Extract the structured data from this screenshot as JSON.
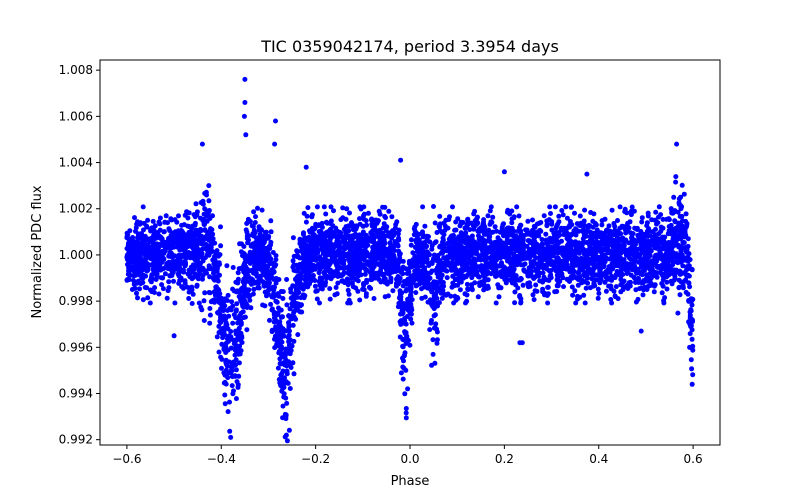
{
  "chart_data": {
    "type": "scatter",
    "title": "TIC 0359042174, period 3.3954 days",
    "xlabel": "Phase",
    "ylabel": "Normalized PDC flux",
    "xlim": [
      -0.657,
      0.657
    ],
    "ylim": [
      0.99177,
      1.00844
    ],
    "xticks": [
      -0.6,
      -0.4,
      -0.2,
      0.0,
      0.2,
      0.4,
      0.6
    ],
    "xtick_labels": [
      "−0.6",
      "−0.4",
      "−0.2",
      "0.0",
      "0.2",
      "0.4",
      "0.6"
    ],
    "yticks": [
      0.992,
      0.994,
      0.996,
      0.998,
      1.0,
      1.002,
      1.004,
      1.006,
      1.008
    ],
    "ytick_labels": [
      "0.992",
      "0.994",
      "0.996",
      "0.998",
      "1.000",
      "1.002",
      "1.004",
      "1.006",
      "1.008"
    ],
    "grid": false,
    "marker_color": "#0000ff",
    "series": [
      {
        "name": "PDC flux",
        "phase_range": [
          -0.6,
          0.6
        ],
        "baseline": 1.0,
        "scatter_sigma": 0.0008,
        "dips": [
          {
            "center": -0.38,
            "depth": 0.0055,
            "width": 0.018
          },
          {
            "center": -0.265,
            "depth": 0.0055,
            "width": 0.016
          },
          {
            "center": -0.01,
            "depth": 0.004,
            "width": 0.008
          },
          {
            "center": 0.05,
            "depth": 0.0025,
            "width": 0.007
          },
          {
            "center": 0.6,
            "depth": 0.004,
            "width": 0.006
          }
        ],
        "bumps": [
          {
            "center": -0.43,
            "height": 0.0012,
            "width": 0.012
          },
          {
            "center": 0.57,
            "height": 0.0012,
            "width": 0.012
          }
        ],
        "notable_points": [
          {
            "x": -0.35,
            "y": 1.0076
          },
          {
            "x": -0.35,
            "y": 1.0066
          },
          {
            "x": -0.351,
            "y": 1.006
          },
          {
            "x": -0.348,
            "y": 1.0052
          },
          {
            "x": -0.285,
            "y": 1.0058
          },
          {
            "x": -0.287,
            "y": 1.0048
          },
          {
            "x": -0.02,
            "y": 1.0041
          },
          {
            "x": -0.44,
            "y": 1.0048
          },
          {
            "x": 0.565,
            "y": 1.0048
          },
          {
            "x": 0.2,
            "y": 1.0036
          },
          {
            "x": 0.375,
            "y": 1.0035
          },
          {
            "x": -0.22,
            "y": 1.0038
          },
          {
            "x": 0.233,
            "y": 0.9962
          },
          {
            "x": 0.238,
            "y": 0.9962
          },
          {
            "x": -0.5,
            "y": 0.9965
          },
          {
            "x": 0.49,
            "y": 0.9967
          },
          {
            "x": -0.38,
            "y": 0.9921
          },
          {
            "x": -0.262,
            "y": 0.9922
          },
          {
            "x": 0.598,
            "y": 0.9944
          },
          {
            "x": -0.005,
            "y": 0.9942
          }
        ]
      }
    ]
  }
}
